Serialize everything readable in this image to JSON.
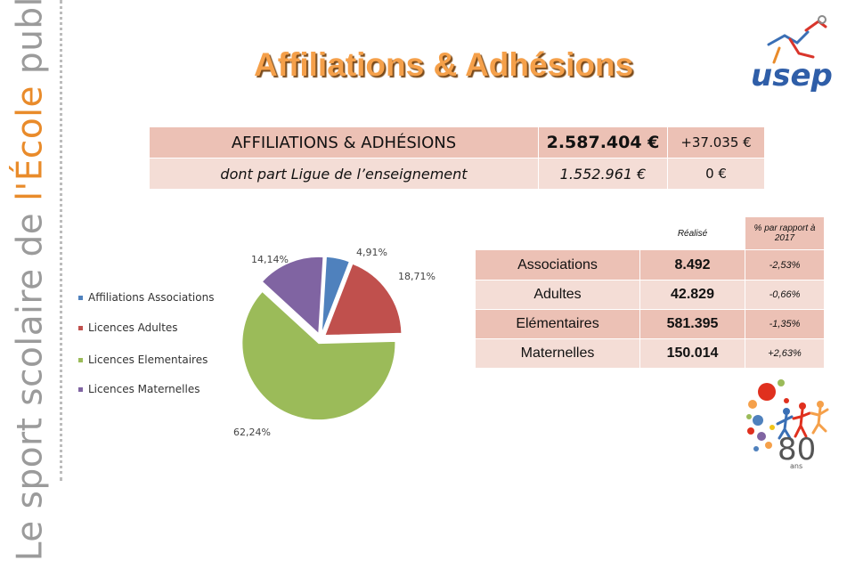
{
  "sidebar": {
    "part1": "Le sport scolaire de ",
    "part2": "l'École",
    "part3": " publique"
  },
  "title": "Affiliations & Adhésions",
  "logo": {
    "name": "usep",
    "text": "usep"
  },
  "summary": {
    "rows": [
      {
        "label": "AFFILIATIONS & ADHÉSIONS",
        "amount": "2.587.404 €",
        "change": "+37.035 €"
      },
      {
        "label": "dont part Ligue de l’enseignement",
        "amount": "1.552.961 €",
        "change": "0 €"
      }
    ]
  },
  "stats": {
    "headers": {
      "realise": "Réalisé",
      "pct": "% par rapport à 2017"
    },
    "rows": [
      {
        "label": "Associations",
        "value": "8.492",
        "pct": "-2,53%"
      },
      {
        "label": "Adultes",
        "value": "42.829",
        "pct": "-0,66%"
      },
      {
        "label": "Elémentaires",
        "value": "581.395",
        "pct": "-1,35%"
      },
      {
        "label": "Maternelles",
        "value": "150.014",
        "pct": "+2,63%"
      }
    ]
  },
  "chart_data": {
    "type": "pie",
    "labels": [
      "Affiliations Associations",
      "Licences Adultes",
      "Licences Elementaires",
      "Licences Maternelles"
    ],
    "values": [
      4.91,
      18.71,
      62.24,
      14.14
    ],
    "value_labels": [
      "4,91%",
      "18,71%",
      "62,24%",
      "14,14%"
    ],
    "colors": [
      "#4f81bd",
      "#c0504d",
      "#9bbb59",
      "#8064a2"
    ],
    "legend": "left"
  },
  "anniversary": {
    "number": "80",
    "unit": "ans"
  },
  "colors": {
    "title": "#f5a04a",
    "table_dark": "#ecc1b5",
    "table_light": "#f4ddd6",
    "sidebar_orange": "#e98b2a"
  }
}
